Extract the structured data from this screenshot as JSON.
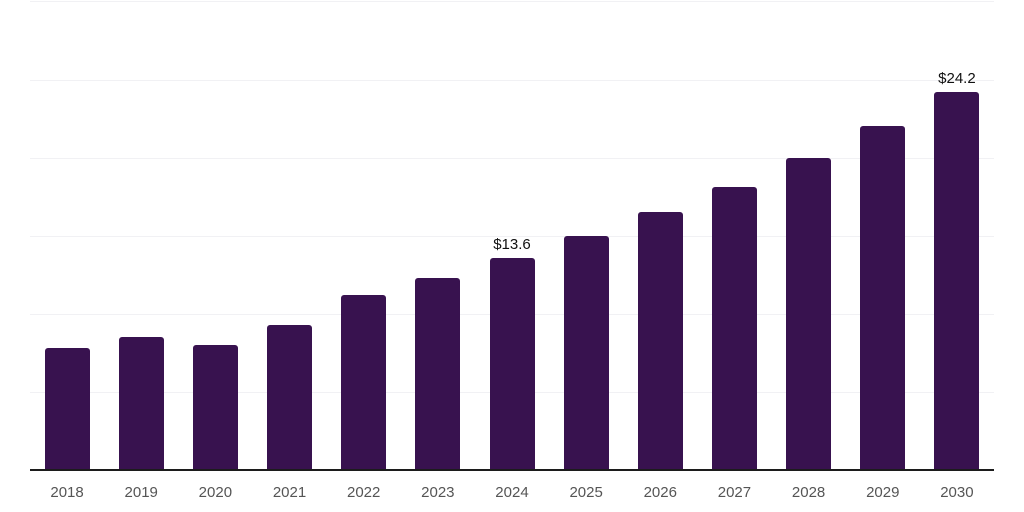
{
  "chart_data": {
    "type": "bar",
    "title": "",
    "xlabel": "",
    "ylabel": "",
    "categories": [
      "2018",
      "2019",
      "2020",
      "2021",
      "2022",
      "2023",
      "2024",
      "2025",
      "2026",
      "2027",
      "2028",
      "2029",
      "2030"
    ],
    "values": [
      7.8,
      8.5,
      8.0,
      9.3,
      11.2,
      12.3,
      13.6,
      15.0,
      16.5,
      18.1,
      20.0,
      22.0,
      24.2
    ],
    "data_labels": [
      "",
      "",
      "",
      "",
      "",
      "",
      "$13.6",
      "",
      "",
      "",
      "",
      "",
      "$24.2"
    ],
    "ylim": [
      0,
      30
    ],
    "grid_interval": 5,
    "grid": true,
    "legend": false,
    "y_axis_labels_visible": false,
    "colors": {
      "bar": "#38124F",
      "axis_line": "#1c1c1c",
      "gridline": "#f1f1f4",
      "tick_label": "#555555",
      "data_label": "#111111",
      "background": "#ffffff"
    }
  }
}
